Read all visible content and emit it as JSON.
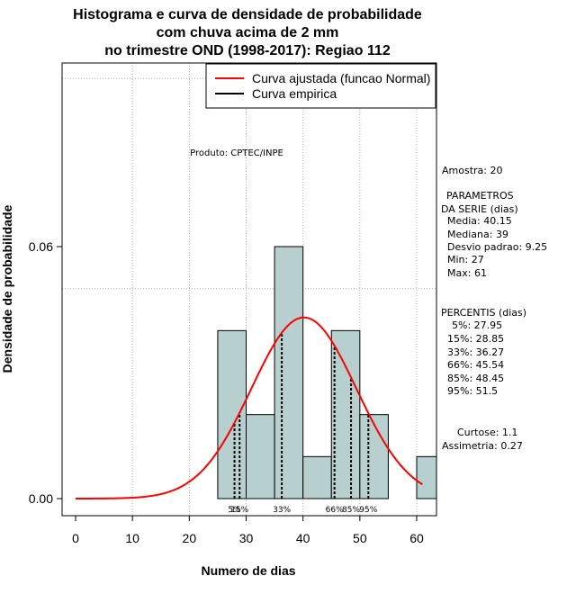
{
  "chart_data": {
    "type": "bar",
    "title_lines": [
      "Histograma e curva de densidade de probabilidade",
      "com chuva acima de 2 mm",
      "no trimestre OND (1998-2017): Regiao 112"
    ],
    "xlabel": "Numero de dias",
    "ylabel": "Densidade de probabilidade",
    "xlim": [
      -3,
      64
    ],
    "ylim": [
      -0.004,
      0.1
    ],
    "xticks": [
      0,
      10,
      20,
      30,
      40,
      50,
      60
    ],
    "yticks": [
      0.0,
      0.06
    ],
    "ytick_labels": [
      "0.00",
      "0.06"
    ],
    "grid_y": [
      0.05,
      0.1
    ],
    "grid_x": [
      10,
      20,
      30,
      40,
      50,
      60
    ],
    "bins": [
      {
        "start": 25,
        "end": 30,
        "density": 0.04
      },
      {
        "start": 30,
        "end": 35,
        "density": 0.02
      },
      {
        "start": 35,
        "end": 40,
        "density": 0.06
      },
      {
        "start": 40,
        "end": 45,
        "density": 0.01
      },
      {
        "start": 45,
        "end": 50,
        "density": 0.04
      },
      {
        "start": 50,
        "end": 55,
        "density": 0.02
      },
      {
        "start": 55,
        "end": 60,
        "density": 0.0
      },
      {
        "start": 60,
        "end": 65,
        "density": 0.01
      }
    ],
    "bar_color": "#b8cfcf",
    "normal_curve": {
      "mean": 40.15,
      "sd": 9.25,
      "x_from": 0,
      "x_to": 61,
      "color": "#ff0000"
    },
    "percentiles": [
      {
        "label": "5%",
        "value": 27.95
      },
      {
        "label": "15%",
        "value": 28.85
      },
      {
        "label": "33%",
        "value": 36.27
      },
      {
        "label": "66%",
        "value": 45.54
      },
      {
        "label": "85%",
        "value": 48.45
      },
      {
        "label": "95%",
        "value": 51.5
      }
    ],
    "legend": [
      {
        "label": "Curva ajustada (funcao Normal)",
        "color": "#ff0000"
      },
      {
        "label": "Curva empirica",
        "color": "#000000"
      }
    ],
    "product_label": "Produto: CPTEC/INPE"
  },
  "stats": {
    "amostra": "Amostra: 20",
    "params_title_1": "PARAMETROS",
    "params_title_2": "DA SERIE (dias)",
    "media": "Media: 40.15",
    "mediana": "Mediana: 39",
    "desvio": "Desvio padrao: 9.25",
    "min": "Min: 27",
    "max": "Max: 61",
    "percentis_title": "PERCENTIS (dias)",
    "p5": "5%: 27.95",
    "p15": "15%: 28.85",
    "p33": "33%: 36.27",
    "p66": "66%: 45.54",
    "p85": "85%: 48.45",
    "p95": "95%: 51.5",
    "curtose": "Curtose: 1.1",
    "assimetria": "Assimetria: 0.27"
  }
}
